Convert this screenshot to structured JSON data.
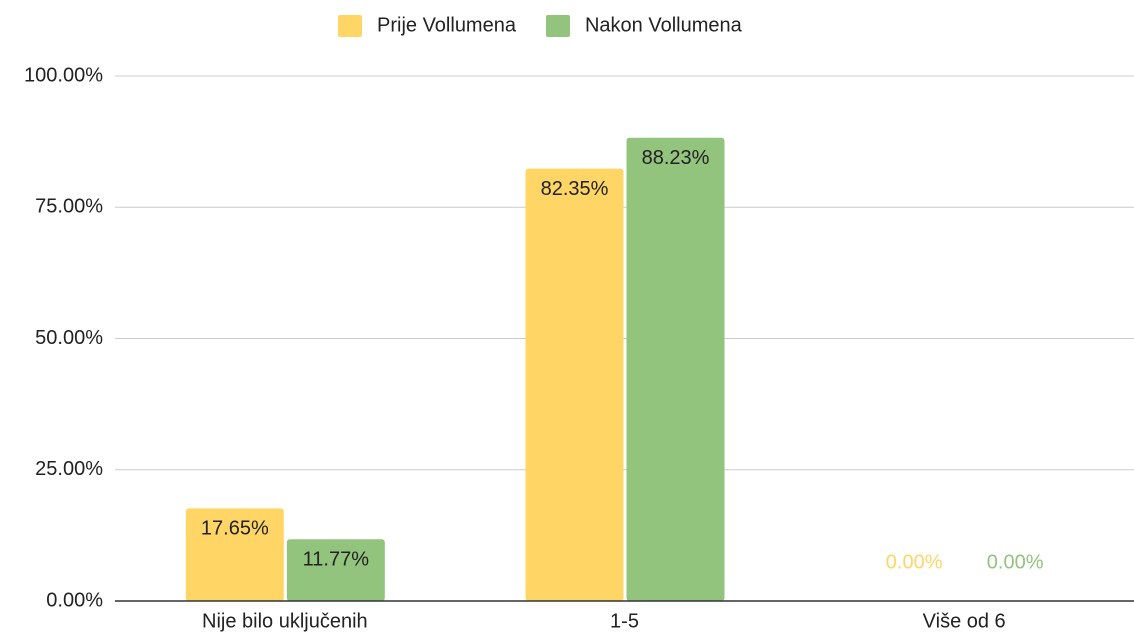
{
  "chart_data": {
    "type": "bar",
    "categories": [
      "Nije bilo uključenih",
      "1-5",
      "Više od 6"
    ],
    "series": [
      {
        "name": "Prije Vollumena",
        "color": "#ffd666",
        "values": [
          17.65,
          82.35,
          0
        ],
        "value_labels": [
          "17.65%",
          "82.35%",
          "0.00%"
        ]
      },
      {
        "name": "Nakon Vollumena",
        "color": "#93c47d",
        "values": [
          11.77,
          88.23,
          0
        ],
        "value_labels": [
          "11.77%",
          "88.23%",
          "0.00%"
        ]
      }
    ],
    "ylim": [
      0,
      100
    ],
    "yticks": [
      {
        "value": 0,
        "label": "0.00%"
      },
      {
        "value": 25,
        "label": "25.00%"
      },
      {
        "value": 50,
        "label": "50.00%"
      },
      {
        "value": 75,
        "label": "75.00%"
      },
      {
        "value": 100,
        "label": "100.00%"
      }
    ],
    "grid": true,
    "legend": "top"
  }
}
